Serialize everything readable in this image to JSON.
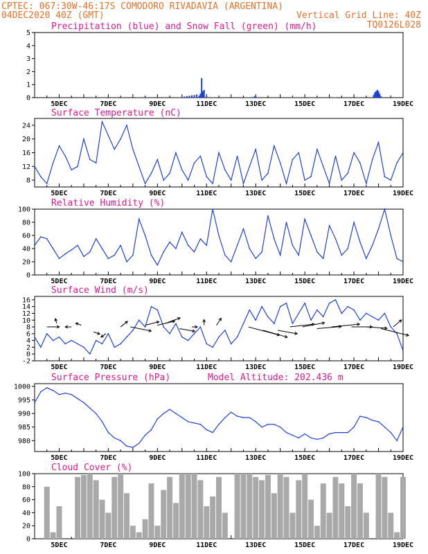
{
  "header": {
    "line1_left": "CPTEC:   067:30W-46:17S   COMODORO RIVADAVIA (ARGENTINA)",
    "line2_left": "04DEC2020 40Z (GMT)",
    "line2_right": "Vertical Grid Line: 40Z",
    "line3_right": "TQ0126L028"
  },
  "colors": {
    "header": "#e8702a",
    "panel_title": "#e0198c",
    "series_line": "#1f3fd6",
    "precip": "#1f3fd6",
    "snow": "#2ca02c",
    "cloud": "#a9a9a9"
  },
  "x_axis": {
    "start_day": 4,
    "end_day": 19,
    "tick_days": [
      5,
      7,
      9,
      11,
      13,
      15,
      17,
      19
    ],
    "tick_labels": [
      "5DEC",
      "7DEC",
      "9DEC",
      "11DEC",
      "13DEC",
      "15DEC",
      "17DEC",
      "19DEC"
    ]
  },
  "chart_data": [
    {
      "type": "bar",
      "id": "precip",
      "title": "Precipitation (blue) and Snow Fall (green) (mm/h)",
      "ylim": [
        0,
        5
      ],
      "yticks": [
        0,
        1,
        2,
        3,
        4,
        5
      ],
      "series": [
        {
          "name": "Precipitation",
          "color": "#1f3fd6",
          "x": [
            10.0,
            10.1,
            10.2,
            10.3,
            10.4,
            10.5,
            10.6,
            10.7,
            10.75,
            10.8,
            10.85,
            10.9,
            11.0,
            12.95,
            13.0,
            17.8,
            17.85,
            17.9,
            17.95,
            18.0,
            18.05,
            18.1
          ],
          "values": [
            0.05,
            0.08,
            0.12,
            0.15,
            0.18,
            0.2,
            0.25,
            0.15,
            0.3,
            1.5,
            0.5,
            0.6,
            0.1,
            0.1,
            0.08,
            0.2,
            0.4,
            0.5,
            0.6,
            0.5,
            0.3,
            0.1
          ]
        },
        {
          "name": "Snow Fall",
          "color": "#2ca02c",
          "x": [
            5.6,
            6.4,
            7.6,
            8.2,
            9.3,
            9.8,
            12.7,
            14.5,
            16.2,
            17.2
          ],
          "values": [
            0.04,
            0.03,
            0.04,
            0.03,
            0.04,
            0.05,
            0.03,
            0.03,
            0.03,
            0.03
          ]
        }
      ]
    },
    {
      "type": "line",
      "id": "temperature",
      "title": "Surface Temperature (nC)",
      "ylim": [
        6,
        26
      ],
      "yticks": [
        8,
        12,
        16,
        20,
        24
      ],
      "x": [
        4.0,
        4.25,
        4.5,
        4.75,
        5.0,
        5.25,
        5.5,
        5.75,
        6.0,
        6.25,
        6.5,
        6.75,
        7.0,
        7.25,
        7.5,
        7.75,
        8.0,
        8.25,
        8.5,
        8.75,
        9.0,
        9.25,
        9.5,
        9.75,
        10.0,
        10.25,
        10.5,
        10.75,
        11.0,
        11.25,
        11.5,
        11.75,
        12.0,
        12.25,
        12.5,
        12.75,
        13.0,
        13.25,
        13.5,
        13.75,
        14.0,
        14.25,
        14.5,
        14.75,
        15.0,
        15.25,
        15.5,
        15.75,
        16.0,
        16.25,
        16.5,
        16.75,
        17.0,
        17.25,
        17.5,
        17.75,
        18.0,
        18.25,
        18.5,
        18.75,
        19.0
      ],
      "values": [
        12,
        9,
        7,
        13,
        18,
        15,
        11,
        12,
        20,
        14,
        13,
        25,
        21,
        17,
        20,
        24,
        17,
        12,
        7,
        10,
        14,
        8,
        10,
        16,
        11,
        8,
        13,
        15,
        9,
        7,
        16,
        11,
        8,
        15,
        7,
        12,
        17,
        8,
        10,
        18,
        13,
        7,
        14,
        16,
        8,
        9,
        17,
        12,
        7,
        15,
        8,
        10,
        16,
        13,
        7,
        14,
        19,
        9,
        8,
        13,
        16
      ]
    },
    {
      "type": "line",
      "id": "humidity",
      "title": "Relative Humidity (%)",
      "ylim": [
        0,
        100
      ],
      "yticks": [
        0,
        20,
        40,
        60,
        80,
        100
      ],
      "x": [
        4.0,
        4.25,
        4.5,
        4.75,
        5.0,
        5.25,
        5.5,
        5.75,
        6.0,
        6.25,
        6.5,
        6.75,
        7.0,
        7.25,
        7.5,
        7.75,
        8.0,
        8.25,
        8.5,
        8.75,
        9.0,
        9.25,
        9.5,
        9.75,
        10.0,
        10.25,
        10.5,
        10.75,
        11.0,
        11.25,
        11.5,
        11.75,
        12.0,
        12.25,
        12.5,
        12.75,
        13.0,
        13.25,
        13.5,
        13.75,
        14.0,
        14.25,
        14.5,
        14.75,
        15.0,
        15.25,
        15.5,
        15.75,
        16.0,
        16.25,
        16.5,
        16.75,
        17.0,
        17.25,
        17.5,
        17.75,
        18.0,
        18.25,
        18.5,
        18.75,
        19.0
      ],
      "values": [
        45,
        58,
        55,
        40,
        25,
        32,
        38,
        45,
        28,
        35,
        55,
        40,
        25,
        30,
        45,
        20,
        30,
        85,
        60,
        30,
        15,
        35,
        50,
        40,
        65,
        45,
        35,
        55,
        45,
        100,
        60,
        30,
        20,
        45,
        70,
        40,
        25,
        35,
        90,
        55,
        30,
        80,
        45,
        30,
        85,
        60,
        35,
        25,
        75,
        55,
        30,
        40,
        80,
        50,
        25,
        45,
        70,
        100,
        60,
        25,
        20
      ]
    },
    {
      "type": "line",
      "id": "wind",
      "title": "Surface Wind (m/s)",
      "ylim": [
        -2,
        17
      ],
      "yticks": [
        -2,
        0,
        2,
        4,
        6,
        8,
        10,
        12,
        14,
        16
      ],
      "x": [
        4.0,
        4.25,
        4.5,
        4.75,
        5.0,
        5.25,
        5.5,
        5.75,
        6.0,
        6.25,
        6.5,
        6.75,
        7.0,
        7.25,
        7.5,
        7.75,
        8.0,
        8.25,
        8.5,
        8.75,
        9.0,
        9.25,
        9.5,
        9.75,
        10.0,
        10.25,
        10.5,
        10.75,
        11.0,
        11.25,
        11.5,
        11.75,
        12.0,
        12.25,
        12.5,
        12.75,
        13.0,
        13.25,
        13.5,
        13.75,
        14.0,
        14.25,
        14.5,
        14.75,
        15.0,
        15.25,
        15.5,
        15.75,
        16.0,
        16.25,
        16.5,
        16.75,
        17.0,
        17.25,
        17.5,
        17.75,
        18.0,
        18.25,
        18.5,
        18.75,
        19.0
      ],
      "values": [
        5,
        2,
        6,
        4,
        5,
        3,
        4,
        3,
        2,
        0,
        4,
        3,
        6,
        2,
        3,
        5,
        7,
        10,
        8,
        14,
        13,
        8,
        6,
        9,
        5,
        4,
        6,
        8,
        3,
        2,
        5,
        7,
        3,
        5,
        9,
        13,
        10,
        14,
        11,
        9,
        14,
        15,
        9,
        12,
        15,
        10,
        13,
        11,
        15,
        16,
        12,
        14,
        13,
        10,
        12,
        11,
        10,
        12,
        8,
        6,
        1
      ],
      "arrows": [
        {
          "x": 4.5,
          "y": 8.0,
          "dx": 18,
          "dy": 0
        },
        {
          "x": 4.9,
          "y": 9.0,
          "dx": -2,
          "dy": -7
        },
        {
          "x": 5.5,
          "y": 8.0,
          "dx": -9,
          "dy": 0
        },
        {
          "x": 5.9,
          "y": 8.5,
          "dx": -8,
          "dy": -3
        },
        {
          "x": 6.4,
          "y": 6.5,
          "dx": 9,
          "dy": 3
        },
        {
          "x": 6.9,
          "y": 6.0,
          "dx": -7,
          "dy": 5
        },
        {
          "x": 7.5,
          "y": 8.0,
          "dx": 10,
          "dy": -8
        },
        {
          "x": 7.9,
          "y": 8.0,
          "dx": 30,
          "dy": 6
        },
        {
          "x": 8.5,
          "y": 8.5,
          "dx": 20,
          "dy": -5
        },
        {
          "x": 9.0,
          "y": 8.5,
          "dx": 25,
          "dy": -6
        },
        {
          "x": 9.3,
          "y": 9.0,
          "dx": 22,
          "dy": -8
        },
        {
          "x": 9.9,
          "y": 7.5,
          "dx": 22,
          "dy": 4
        },
        {
          "x": 10.4,
          "y": 8.0,
          "dx": 8,
          "dy": 0
        },
        {
          "x": 10.9,
          "y": 8.5,
          "dx": 0,
          "dy": -8
        },
        {
          "x": 11.4,
          "y": 8.5,
          "dx": 7,
          "dy": -10
        },
        {
          "x": 12.7,
          "y": 8.0,
          "dx": 45,
          "dy": 12
        },
        {
          "x": 13.3,
          "y": 7.0,
          "dx": 35,
          "dy": 10
        },
        {
          "x": 13.9,
          "y": 7.0,
          "dx": 28,
          "dy": 5
        },
        {
          "x": 14.4,
          "y": 8.0,
          "dx": 35,
          "dy": -4
        },
        {
          "x": 14.9,
          "y": 8.0,
          "dx": 32,
          "dy": -6
        },
        {
          "x": 15.5,
          "y": 7.5,
          "dx": 35,
          "dy": -3
        },
        {
          "x": 16.1,
          "y": 8.0,
          "dx": 40,
          "dy": -4
        },
        {
          "x": 16.9,
          "y": 8.0,
          "dx": 30,
          "dy": 0
        },
        {
          "x": 17.5,
          "y": 8.0,
          "dx": 30,
          "dy": 2
        },
        {
          "x": 18.1,
          "y": 7.5,
          "dx": 40,
          "dy": 10
        },
        {
          "x": 18.6,
          "y": 8.0,
          "dx": 12,
          "dy": -10
        }
      ]
    },
    {
      "type": "line",
      "id": "pressure",
      "title": "Surface Pressure (hPa)",
      "subtitle": "Model Altitude: 202.436 m",
      "ylim": [
        976,
        1001
      ],
      "yticks": [
        980,
        985,
        990,
        995,
        1000
      ],
      "x": [
        4.0,
        4.25,
        4.5,
        4.75,
        5.0,
        5.25,
        5.5,
        5.75,
        6.0,
        6.25,
        6.5,
        6.75,
        7.0,
        7.25,
        7.5,
        7.75,
        8.0,
        8.25,
        8.5,
        8.75,
        9.0,
        9.25,
        9.5,
        9.75,
        10.0,
        10.25,
        10.5,
        10.75,
        11.0,
        11.25,
        11.5,
        11.75,
        12.0,
        12.25,
        12.5,
        12.75,
        13.0,
        13.25,
        13.5,
        13.75,
        14.0,
        14.25,
        14.5,
        14.75,
        15.0,
        15.25,
        15.5,
        15.75,
        16.0,
        16.25,
        16.5,
        16.75,
        17.0,
        17.25,
        17.5,
        17.75,
        18.0,
        18.25,
        18.5,
        18.75,
        19.0
      ],
      "values": [
        994,
        998,
        999.5,
        998.5,
        997,
        997.5,
        997,
        995.5,
        994,
        992,
        990,
        987,
        983,
        981,
        980,
        978,
        977.5,
        979,
        982,
        984,
        988,
        990,
        991.5,
        990,
        988.5,
        987,
        986.5,
        986,
        984,
        983,
        986,
        988.5,
        990.5,
        989,
        988.5,
        988.5,
        987,
        985,
        986,
        986,
        985,
        983,
        982,
        981,
        982.5,
        981,
        980.5,
        981,
        982.5,
        983,
        983,
        983,
        985,
        989,
        988.5,
        987.5,
        987,
        985,
        983,
        980,
        985
      ]
    },
    {
      "type": "bar",
      "id": "cloud",
      "title": "Cloud Cover (%)",
      "ylim": [
        0,
        100
      ],
      "yticks": [
        0,
        20,
        40,
        60,
        80,
        100
      ],
      "x": [
        4.0,
        4.25,
        4.5,
        4.75,
        5.0,
        5.25,
        5.5,
        5.75,
        6.0,
        6.25,
        6.5,
        6.75,
        7.0,
        7.25,
        7.5,
        7.75,
        8.0,
        8.25,
        8.5,
        8.75,
        9.0,
        9.25,
        9.5,
        9.75,
        10.0,
        10.25,
        10.5,
        10.75,
        11.0,
        11.25,
        11.5,
        11.75,
        12.0,
        12.25,
        12.5,
        12.75,
        13.0,
        13.25,
        13.5,
        13.75,
        14.0,
        14.25,
        14.5,
        14.75,
        15.0,
        15.25,
        15.5,
        15.75,
        16.0,
        16.25,
        16.5,
        16.75,
        17.0,
        17.25,
        17.5,
        17.75,
        18.0,
        18.25,
        18.5,
        18.75,
        19.0
      ],
      "values": [
        0,
        0,
        80,
        10,
        50,
        0,
        0,
        95,
        98,
        100,
        90,
        60,
        40,
        95,
        100,
        70,
        20,
        10,
        30,
        85,
        20,
        75,
        95,
        55,
        100,
        100,
        100,
        90,
        50,
        65,
        95,
        40,
        0,
        100,
        100,
        100,
        95,
        90,
        98,
        70,
        100,
        95,
        40,
        90,
        100,
        60,
        20,
        85,
        40,
        95,
        85,
        50,
        100,
        85,
        40,
        0,
        100,
        95,
        40,
        10,
        95
      ]
    }
  ]
}
